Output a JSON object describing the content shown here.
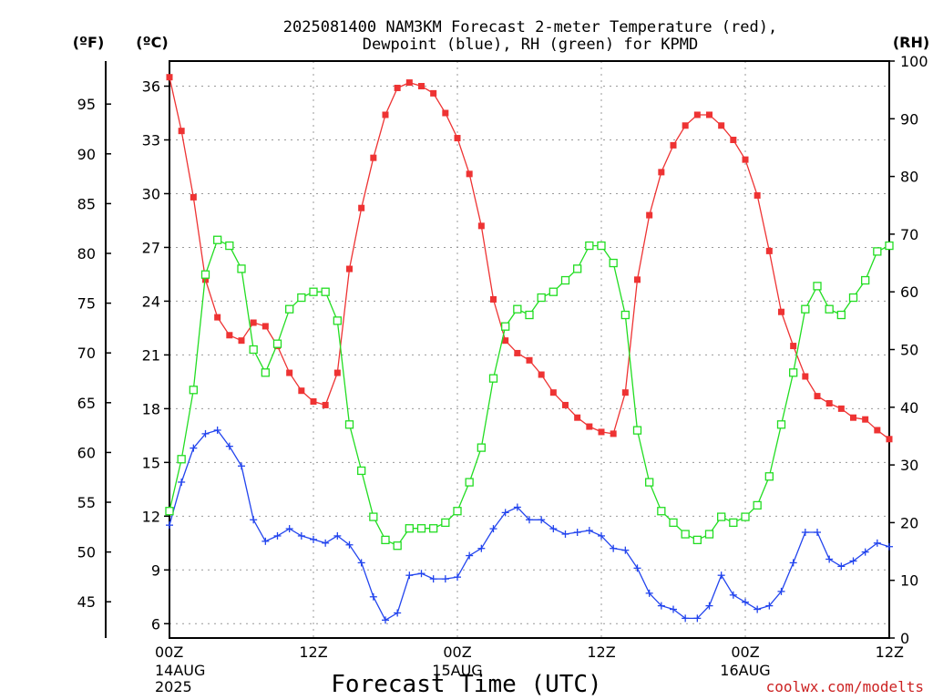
{
  "chart_data": {
    "type": "line",
    "title_line1": "2025081400 NAM3KM Forecast 2-meter Temperature (red),",
    "title_line2": "Dewpoint (blue), RH (green) for KPMD",
    "xlabel": "Forecast Time (UTC)",
    "watermark": "coolwx.com/modelts",
    "units": {
      "fahrenheit": "(ºF)",
      "celsius": "(ºC)",
      "rh": "(RH)"
    },
    "x_ticks": [
      {
        "hour": 0,
        "label": "00Z",
        "sub1": "14AUG",
        "sub2": "2025"
      },
      {
        "hour": 12,
        "label": "12Z",
        "sub1": "",
        "sub2": ""
      },
      {
        "hour": 24,
        "label": "00Z",
        "sub1": "15AUG",
        "sub2": ""
      },
      {
        "hour": 36,
        "label": "12Z",
        "sub1": "",
        "sub2": ""
      },
      {
        "hour": 48,
        "label": "00Z",
        "sub1": "16AUG",
        "sub2": ""
      },
      {
        "hour": 60,
        "label": "12Z",
        "sub1": "",
        "sub2": ""
      }
    ],
    "x_range": [
      0,
      60
    ],
    "celsius_range": [
      5.2,
      37.4
    ],
    "celsius_ticks": [
      6,
      9,
      12,
      15,
      18,
      21,
      24,
      27,
      30,
      33,
      36
    ],
    "fahrenheit_ticks": [
      45,
      50,
      55,
      60,
      65,
      70,
      75,
      80,
      85,
      90,
      95
    ],
    "rh_range": [
      0,
      100
    ],
    "rh_ticks": [
      0,
      10,
      20,
      30,
      40,
      50,
      60,
      70,
      80,
      90,
      100
    ],
    "grid": true,
    "colors": {
      "temperature": "#ee3333",
      "dewpoint": "#2244ee",
      "rh": "#22dd22"
    },
    "series": [
      {
        "name": "Temperature",
        "unit": "C",
        "x": [
          0,
          1,
          2,
          3,
          4,
          5,
          6,
          7,
          8,
          9,
          10,
          11,
          12,
          13,
          14,
          15,
          16,
          17,
          18,
          19,
          20,
          21,
          22,
          23,
          24,
          25,
          26,
          27,
          28,
          29,
          30,
          31,
          32,
          33,
          34,
          35,
          36,
          37,
          38,
          39,
          40,
          41,
          42,
          43,
          44,
          45,
          46,
          47,
          48,
          49,
          50,
          51,
          52,
          53,
          54,
          55,
          56,
          57,
          58,
          59,
          60
        ],
        "y": [
          36.5,
          33.5,
          29.8,
          25.2,
          23.1,
          22.1,
          21.8,
          22.8,
          22.6,
          21.5,
          20.0,
          19.0,
          18.4,
          18.2,
          20.0,
          25.8,
          29.2,
          32.0,
          34.4,
          35.9,
          36.2,
          36.0,
          35.6,
          34.5,
          33.1,
          31.1,
          28.2,
          24.1,
          21.8,
          21.1,
          20.7,
          19.9,
          18.9,
          18.2,
          17.5,
          17.0,
          16.7,
          16.6,
          18.9,
          25.2,
          28.8,
          31.2,
          32.7,
          33.8,
          34.4,
          34.4,
          33.8,
          33.0,
          31.9,
          29.9,
          26.8,
          23.4,
          21.5,
          19.8,
          18.7,
          18.3,
          18.0,
          17.5,
          17.4,
          16.8,
          16.3
        ]
      },
      {
        "name": "Dewpoint",
        "unit": "C",
        "x": [
          0,
          1,
          2,
          3,
          4,
          5,
          6,
          7,
          8,
          9,
          10,
          11,
          12,
          13,
          14,
          15,
          16,
          17,
          18,
          19,
          20,
          21,
          22,
          23,
          24,
          25,
          26,
          27,
          28,
          29,
          30,
          31,
          32,
          33,
          34,
          35,
          36,
          37,
          38,
          39,
          40,
          41,
          42,
          43,
          44,
          45,
          46,
          47,
          48,
          49,
          50,
          51,
          52,
          53,
          54,
          55,
          56,
          57,
          58,
          59,
          60
        ],
        "y": [
          11.5,
          13.9,
          15.8,
          16.6,
          16.8,
          15.9,
          14.8,
          11.8,
          10.6,
          10.9,
          11.3,
          10.9,
          10.7,
          10.5,
          10.9,
          10.4,
          9.4,
          7.5,
          6.2,
          6.6,
          8.7,
          8.8,
          8.5,
          8.5,
          8.6,
          9.8,
          10.2,
          11.3,
          12.2,
          12.5,
          11.8,
          11.8,
          11.3,
          11.0,
          11.1,
          11.2,
          10.9,
          10.2,
          10.1,
          9.1,
          7.7,
          7.0,
          6.8,
          6.3,
          6.3,
          7.0,
          8.7,
          7.6,
          7.2,
          6.8,
          7.0,
          7.8,
          9.4,
          11.1,
          11.1,
          9.6,
          9.2,
          9.5,
          10.0,
          10.5,
          10.3
        ]
      },
      {
        "name": "RH",
        "unit": "%",
        "x": [
          0,
          1,
          2,
          3,
          4,
          5,
          6,
          7,
          8,
          9,
          10,
          11,
          12,
          13,
          14,
          15,
          16,
          17,
          18,
          19,
          20,
          21,
          22,
          23,
          24,
          25,
          26,
          27,
          28,
          29,
          30,
          31,
          32,
          33,
          34,
          35,
          36,
          37,
          38,
          39,
          40,
          41,
          42,
          43,
          44,
          45,
          46,
          47,
          48,
          49,
          50,
          51,
          52,
          53,
          54,
          55,
          56,
          57,
          58,
          59,
          60
        ],
        "y": [
          22,
          31,
          43,
          63,
          69,
          68,
          64,
          50,
          46,
          51,
          57,
          59,
          60,
          60,
          55,
          37,
          29,
          21,
          17,
          16,
          19,
          19,
          19,
          20,
          22,
          27,
          33,
          45,
          54,
          57,
          56,
          59,
          60,
          62,
          64,
          68,
          68,
          65,
          56,
          36,
          27,
          22,
          20,
          18,
          17,
          18,
          21,
          20,
          21,
          23,
          28,
          37,
          46,
          57,
          61,
          57,
          56,
          59,
          62,
          67,
          68
        ]
      }
    ]
  }
}
